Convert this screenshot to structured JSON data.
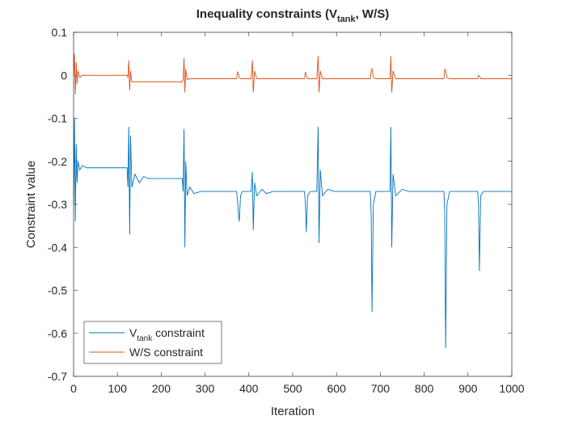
{
  "chart_data": {
    "type": "line",
    "title": [
      "Inequality constraints (V",
      "tank",
      ", W/S)"
    ],
    "xlabel": "Iteration",
    "ylabel": "Constraint value",
    "xlim": [
      0,
      1000
    ],
    "ylim": [
      -0.7,
      0.1
    ],
    "xticks": [
      0,
      100,
      200,
      300,
      400,
      500,
      600,
      700,
      800,
      900,
      1000
    ],
    "yticks": [
      0.1,
      0,
      -0.1,
      -0.2,
      -0.3,
      -0.4,
      -0.5,
      -0.6,
      -0.7
    ],
    "grid": false,
    "legend": "bottom-left",
    "x": [
      0,
      2,
      4,
      6,
      8,
      10,
      14,
      20,
      30,
      60,
      122,
      124,
      126,
      128,
      130,
      133,
      140,
      150,
      160,
      170,
      248,
      250,
      252,
      254,
      256,
      259,
      265,
      275,
      290,
      372,
      374,
      376,
      378,
      381,
      385,
      405,
      408,
      410,
      413,
      418,
      430,
      440,
      455,
      527,
      529,
      531,
      534,
      540,
      555,
      558,
      560,
      563,
      568,
      580,
      595,
      677,
      679,
      681,
      684,
      690,
      722,
      724,
      726,
      729,
      735,
      750,
      765,
      845,
      847,
      849,
      852,
      858,
      922,
      924,
      926,
      929,
      935,
      1000
    ],
    "series": [
      {
        "name": [
          "V",
          "tank",
          " constraint"
        ],
        "color": "#0072bd",
        "values": [
          -0.3,
          -0.1,
          -0.34,
          -0.16,
          -0.25,
          -0.2,
          -0.22,
          -0.21,
          -0.215,
          -0.215,
          -0.215,
          -0.26,
          -0.12,
          -0.37,
          -0.14,
          -0.26,
          -0.23,
          -0.25,
          -0.235,
          -0.24,
          -0.24,
          -0.27,
          -0.125,
          -0.4,
          -0.2,
          -0.28,
          -0.26,
          -0.275,
          -0.27,
          -0.27,
          -0.29,
          -0.32,
          -0.34,
          -0.28,
          -0.27,
          -0.27,
          -0.225,
          -0.36,
          -0.25,
          -0.28,
          -0.265,
          -0.275,
          -0.27,
          -0.27,
          -0.3,
          -0.365,
          -0.28,
          -0.27,
          -0.27,
          -0.12,
          -0.39,
          -0.22,
          -0.28,
          -0.265,
          -0.27,
          -0.27,
          -0.32,
          -0.55,
          -0.3,
          -0.27,
          -0.27,
          -0.12,
          -0.4,
          -0.23,
          -0.28,
          -0.265,
          -0.27,
          -0.27,
          -0.32,
          -0.635,
          -0.3,
          -0.27,
          -0.27,
          -0.3,
          -0.455,
          -0.28,
          -0.27,
          -0.27
        ]
      },
      {
        "name": "W/S constraint",
        "color": "#d95319",
        "values": [
          0.0,
          0.05,
          -0.045,
          0.03,
          -0.02,
          0.01,
          -0.005,
          0,
          0,
          0,
          0,
          -0.005,
          0.035,
          -0.035,
          0.01,
          -0.015,
          -0.015,
          -0.015,
          -0.015,
          -0.015,
          -0.015,
          -0.01,
          0.04,
          -0.04,
          0.015,
          -0.01,
          -0.008,
          -0.008,
          -0.008,
          -0.008,
          0.008,
          0.005,
          -0.005,
          -0.008,
          -0.008,
          -0.008,
          0.035,
          -0.04,
          0.01,
          -0.008,
          -0.008,
          -0.008,
          -0.008,
          -0.008,
          0.008,
          0.0,
          -0.008,
          -0.008,
          -0.008,
          0.045,
          -0.04,
          0.01,
          -0.008,
          -0.008,
          -0.008,
          -0.008,
          0.01,
          0.015,
          -0.005,
          -0.008,
          -0.008,
          0.045,
          -0.04,
          0.01,
          -0.008,
          -0.008,
          -0.008,
          -0.008,
          0.015,
          0.01,
          -0.005,
          -0.008,
          -0.008,
          0.0,
          -0.002,
          -0.008,
          -0.008,
          -0.008
        ]
      }
    ]
  }
}
